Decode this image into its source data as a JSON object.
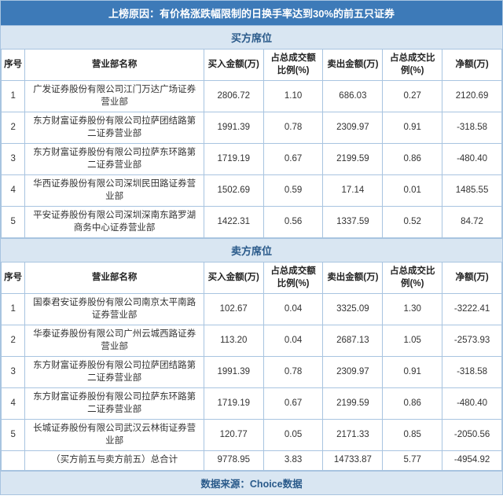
{
  "title": "上榜原因：有价格涨跌幅限制的日换手率达到30%的前五只证券",
  "columns": {
    "idx": "序号",
    "dept": "营业部名称",
    "buy_amt": "买入金额(万)",
    "buy_pct": "占总成交额比例(%)",
    "sell_amt": "卖出金额(万)",
    "sell_pct": "占总成交比例(%)",
    "net": "净额(万)"
  },
  "buy_section": {
    "header": "买方席位",
    "rows": [
      {
        "idx": "1",
        "dept": "广发证券股份有限公司江门万达广场证券营业部",
        "buy_amt": "2806.72",
        "buy_pct": "1.10",
        "sell_amt": "686.03",
        "sell_pct": "0.27",
        "net": "2120.69"
      },
      {
        "idx": "2",
        "dept": "东方财富证券股份有限公司拉萨团结路第二证券营业部",
        "buy_amt": "1991.39",
        "buy_pct": "0.78",
        "sell_amt": "2309.97",
        "sell_pct": "0.91",
        "net": "-318.58"
      },
      {
        "idx": "3",
        "dept": "东方财富证券股份有限公司拉萨东环路第二证券营业部",
        "buy_amt": "1719.19",
        "buy_pct": "0.67",
        "sell_amt": "2199.59",
        "sell_pct": "0.86",
        "net": "-480.40"
      },
      {
        "idx": "4",
        "dept": "华西证券股份有限公司深圳民田路证券营业部",
        "buy_amt": "1502.69",
        "buy_pct": "0.59",
        "sell_amt": "17.14",
        "sell_pct": "0.01",
        "net": "1485.55"
      },
      {
        "idx": "5",
        "dept": "平安证券股份有限公司深圳深南东路罗湖商务中心证券营业部",
        "buy_amt": "1422.31",
        "buy_pct": "0.56",
        "sell_amt": "1337.59",
        "sell_pct": "0.52",
        "net": "84.72"
      }
    ]
  },
  "sell_section": {
    "header": "卖方席位",
    "rows": [
      {
        "idx": "1",
        "dept": "国泰君安证券股份有限公司南京太平南路证券营业部",
        "buy_amt": "102.67",
        "buy_pct": "0.04",
        "sell_amt": "3325.09",
        "sell_pct": "1.30",
        "net": "-3222.41"
      },
      {
        "idx": "2",
        "dept": "华泰证券股份有限公司广州云城西路证券营业部",
        "buy_amt": "113.20",
        "buy_pct": "0.04",
        "sell_amt": "2687.13",
        "sell_pct": "1.05",
        "net": "-2573.93"
      },
      {
        "idx": "3",
        "dept": "东方财富证券股份有限公司拉萨团结路第二证券营业部",
        "buy_amt": "1991.39",
        "buy_pct": "0.78",
        "sell_amt": "2309.97",
        "sell_pct": "0.91",
        "net": "-318.58"
      },
      {
        "idx": "4",
        "dept": "东方财富证券股份有限公司拉萨东环路第二证券营业部",
        "buy_amt": "1719.19",
        "buy_pct": "0.67",
        "sell_amt": "2199.59",
        "sell_pct": "0.86",
        "net": "-480.40"
      },
      {
        "idx": "5",
        "dept": "长城证券股份有限公司武汉云林街证券营业部",
        "buy_amt": "120.77",
        "buy_pct": "0.05",
        "sell_amt": "2171.33",
        "sell_pct": "0.85",
        "net": "-2050.56"
      }
    ],
    "total": {
      "dept": "（买方前五与卖方前五）总合计",
      "buy_amt": "9778.95",
      "buy_pct": "3.83",
      "sell_amt": "14733.87",
      "sell_pct": "5.77",
      "net": "-4954.92"
    }
  },
  "footer": "数据来源：Choice数据",
  "colors": {
    "header_bg": "#3d7ab8",
    "section_bg": "#d9e6f2",
    "border": "#a8c4e0"
  }
}
